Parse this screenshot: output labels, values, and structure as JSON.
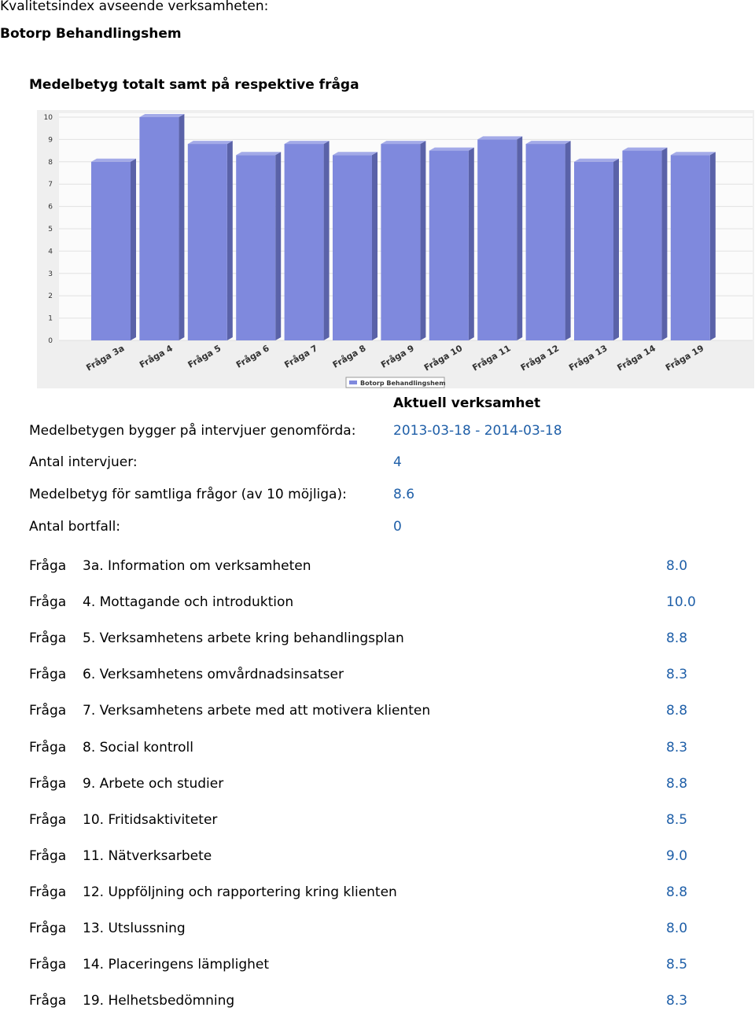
{
  "header": {
    "subtitle": "Kvalitetsindex avseende verksamheten:",
    "title": "Botorp Behandlingshem",
    "chart_heading": "Medelbetyg totalt samt på respektive fråga"
  },
  "chart_data": {
    "type": "bar",
    "categories": [
      "Fråga 3a",
      "Fråga 4",
      "Fråga 5",
      "Fråga 6",
      "Fråga 7",
      "Fråga 8",
      "Fråga 9",
      "Fråga 10",
      "Fråga 11",
      "Fråga 12",
      "Fråga 13",
      "Fråga 14",
      "Fråga 19"
    ],
    "series": [
      {
        "name": "Botorp Behandlingshem",
        "color": "#7f89dd",
        "values": [
          8.0,
          10.0,
          8.8,
          8.3,
          8.8,
          8.3,
          8.8,
          8.5,
          9.0,
          8.8,
          8.0,
          8.5,
          8.3
        ]
      }
    ],
    "ylim": [
      0,
      10
    ],
    "yticks": [
      0,
      1,
      2,
      3,
      4,
      5,
      6,
      7,
      8,
      9,
      10
    ],
    "grid": true,
    "legend": "bottom"
  },
  "summary": {
    "column_heading": "Aktuell verksamhet",
    "rows": [
      [
        "Medelbetygen bygger på intervjuer genomförda:",
        "2013-03-18 - 2014-03-18"
      ],
      [
        "Antal intervjuer:",
        "4"
      ],
      [
        "Medelbetyg för samtliga frågor (av 10 möjliga):",
        "8.6"
      ],
      [
        "Antal bortfall:",
        "0"
      ]
    ]
  },
  "questions": {
    "rows": [
      [
        "Fråga",
        "3a. Information om verksamheten",
        "8.0"
      ],
      [
        "Fråga",
        "4. Mottagande och introduktion",
        "10.0"
      ],
      [
        "Fråga",
        "5. Verksamhetens arbete kring behandlingsplan",
        "8.8"
      ],
      [
        "Fråga",
        "6. Verksamhetens omvårdnadsinsatser",
        "8.3"
      ],
      [
        "Fråga",
        "7. Verksamhetens arbete med att motivera klienten",
        "8.8"
      ],
      [
        "Fråga",
        "8. Social kontroll",
        "8.3"
      ],
      [
        "Fråga",
        "9. Arbete och studier",
        "8.8"
      ],
      [
        "Fråga",
        "10. Fritidsaktiviteter",
        "8.5"
      ],
      [
        "Fråga",
        "11. Nätverksarbete",
        "9.0"
      ],
      [
        "Fråga",
        "12. Uppföljning och rapportering kring klienten",
        "8.8"
      ],
      [
        "Fråga",
        "13. Utslussning",
        "8.0"
      ],
      [
        "Fråga",
        "14. Placeringens lämplighet",
        "8.5"
      ],
      [
        "Fråga",
        "19. Helhetsbedömning",
        "8.3"
      ]
    ]
  }
}
